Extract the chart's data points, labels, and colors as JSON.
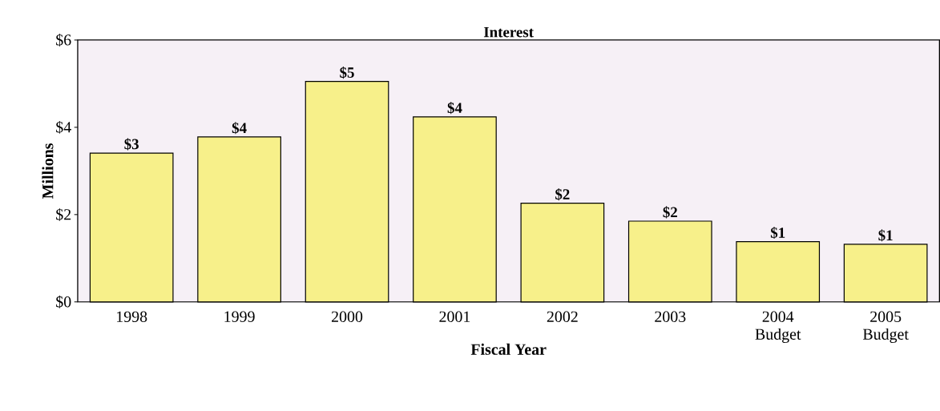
{
  "chart_data": {
    "type": "bar",
    "title": "Interest",
    "xlabel": "Fiscal Year",
    "ylabel": "Millions",
    "categories": [
      "1998",
      "1999",
      "2000",
      "2001",
      "2002",
      "2003",
      "2004 Budget",
      "2005 Budget"
    ],
    "values": [
      3.41,
      3.78,
      5.05,
      4.24,
      2.26,
      1.85,
      1.38,
      1.32
    ],
    "value_labels": [
      "$3",
      "$4",
      "$5",
      "$4",
      "$2",
      "$2",
      "$1",
      "$1"
    ],
    "color": "#f7f08a",
    "ylim": [
      0,
      6
    ],
    "yticks": [
      {
        "value": 0,
        "label": "$0"
      },
      {
        "value": 2,
        "label": "$2"
      },
      {
        "value": 4,
        "label": "$4"
      },
      {
        "value": 6,
        "label": "$6"
      }
    ],
    "grid": false
  }
}
